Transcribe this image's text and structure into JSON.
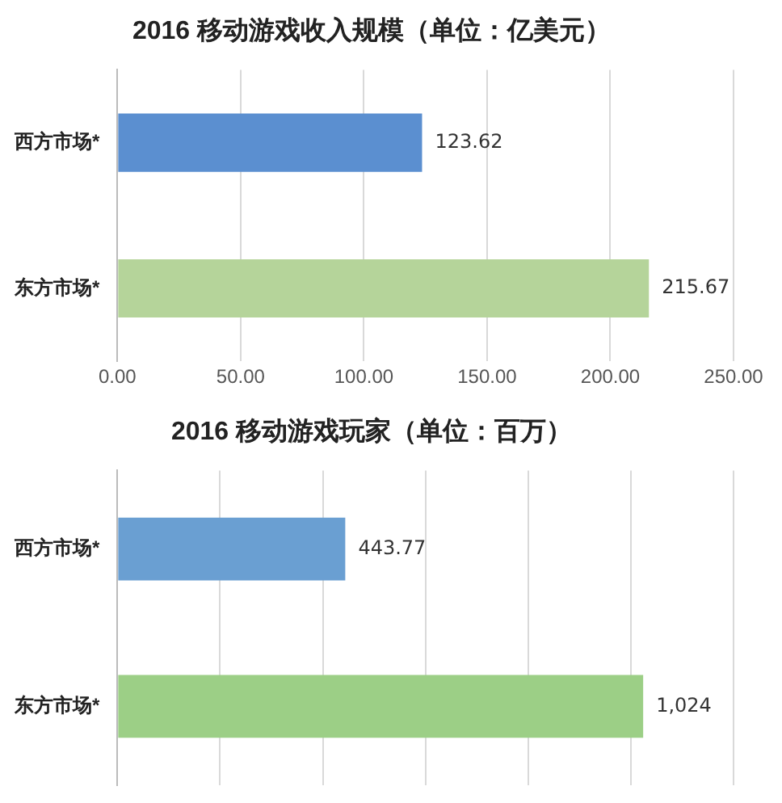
{
  "chart_data": [
    {
      "type": "bar",
      "orientation": "horizontal",
      "title": "2016 移动游戏收入规模（单位：亿美元）",
      "categories": [
        "西方市场*",
        "东方市场*"
      ],
      "values": [
        123.62,
        215.67
      ],
      "colors": [
        "#5b8fd0",
        "#b5d49a"
      ],
      "xlim": [
        0,
        250
      ],
      "xticks": [
        {
          "value": 0,
          "label": "0.00"
        },
        {
          "value": 50,
          "label": "50.00"
        },
        {
          "value": 100,
          "label": "100.00"
        },
        {
          "value": 150,
          "label": "150.00"
        },
        {
          "value": 200,
          "label": "200.00"
        },
        {
          "value": 250,
          "label": "250.00"
        }
      ],
      "grid": "x",
      "legend": false,
      "data_labels": true
    },
    {
      "type": "bar",
      "orientation": "horizontal",
      "title": "2016 移动游戏玩家（单位：百万）",
      "categories": [
        "西方市场*",
        "东方市场*"
      ],
      "values": [
        443.77,
        1024
      ],
      "value_labels": [
        "443.77",
        "1,024"
      ],
      "colors": [
        "#6a9fd2",
        "#9ccf86"
      ],
      "xlim": [
        0,
        1200
      ],
      "xticks": [
        {
          "value": 0,
          "label": null
        },
        {
          "value": 200,
          "label": null
        },
        {
          "value": 400,
          "label": null
        },
        {
          "value": 600,
          "label": null
        },
        {
          "value": 800,
          "label": null
        },
        {
          "value": 1000,
          "label": null
        },
        {
          "value": 1200,
          "label": null
        }
      ],
      "grid": "x",
      "legend": false,
      "tick_labels": "y"
    }
  ]
}
